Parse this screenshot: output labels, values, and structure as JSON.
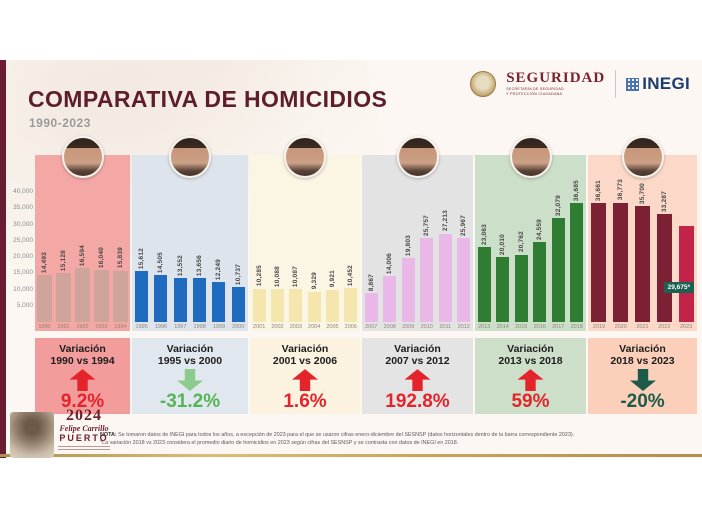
{
  "header": {
    "title": "COMPARATIVA DE HOMICIDIOS",
    "subtitle": "1990-2023",
    "logos": {
      "seguridad": {
        "name": "SEGURIDAD",
        "caption1": "SECRETARÍA DE SEGURIDAD",
        "caption2": "Y PROTECCIÓN CIUDADANA"
      },
      "inegi": {
        "name": "INEGI"
      }
    }
  },
  "chart_data": {
    "type": "bar",
    "title": "COMPARATIVA DE HOMICIDIOS",
    "subtitle": "1990-2023",
    "xlabel": "",
    "ylabel": "",
    "ylim": [
      0,
      40000
    ],
    "grid": false,
    "legend": false,
    "yticks": [
      {
        "value": 40000,
        "label": "40,000"
      },
      {
        "value": 35000,
        "label": "35,000"
      },
      {
        "value": 30000,
        "label": "30,000"
      },
      {
        "value": 25000,
        "label": "25,000"
      },
      {
        "value": 20000,
        "label": "20,000"
      },
      {
        "value": 15000,
        "label": "15,000"
      },
      {
        "value": 10000,
        "label": "10,000"
      },
      {
        "value": 5000,
        "label": "5,000"
      }
    ],
    "periods": [
      {
        "range": "1990-1994",
        "panel_color": "#f4a8a5",
        "bar_color": "#cfa49b",
        "years": [
          "1990",
          "1991",
          "1992",
          "1993",
          "1994"
        ],
        "values": [
          14493,
          15128,
          16594,
          16040,
          15839
        ],
        "labels": [
          "14,493",
          "15,128",
          "16,594",
          "16,040",
          "15,839"
        ],
        "variation": {
          "title": "Variación",
          "range": "1990 vs 1994",
          "pct": "9.2%",
          "direction": "up",
          "box_color": "#f29c9c",
          "arrow_color": "#e3242b",
          "pct_color": "#e3242b"
        }
      },
      {
        "range": "1995-2000",
        "panel_color": "#dde4ec",
        "bar_color": "#1e6bc0",
        "years": [
          "1995",
          "1996",
          "1997",
          "1998",
          "1999",
          "2000"
        ],
        "values": [
          15612,
          14505,
          13552,
          13656,
          12249,
          10737
        ],
        "labels": [
          "15,612",
          "14,505",
          "13,552",
          "13,656",
          "12,249",
          "10,737"
        ],
        "variation": {
          "title": "Variación",
          "range": "1995 vs 2000",
          "pct": "-31.2%",
          "direction": "down",
          "box_color": "#e0e7ee",
          "arrow_color": "#8bcb8b",
          "pct_color": "#56b456"
        }
      },
      {
        "range": "2001-2006",
        "panel_color": "#fbf5e3",
        "bar_color": "#f5e6ae",
        "years": [
          "2001",
          "2002",
          "2003",
          "2004",
          "2005",
          "2006"
        ],
        "values": [
          10285,
          10088,
          10087,
          9329,
          9921,
          10452
        ],
        "labels": [
          "10,285",
          "10,088",
          "10,087",
          "9,329",
          "9,921",
          "10,452"
        ],
        "variation": {
          "title": "Variación",
          "range": "2001 vs 2006",
          "pct": "1.6%",
          "direction": "up",
          "box_color": "#fbf3df",
          "arrow_color": "#e3242b",
          "pct_color": "#e3242b"
        }
      },
      {
        "range": "2007-2012",
        "panel_color": "#e4e3e4",
        "bar_color": "#e9b8e9",
        "years": [
          "2007",
          "2008",
          "2009",
          "2010",
          "2011",
          "2012"
        ],
        "values": [
          8867,
          14006,
          19803,
          25757,
          27213,
          25967
        ],
        "labels": [
          "8,867",
          "14,006",
          "19,803",
          "25,757",
          "27,213",
          "25,967"
        ],
        "variation": {
          "title": "Variación",
          "range": "2007 vs 2012",
          "pct": "192.8%",
          "direction": "up",
          "box_color": "#e4e4e4",
          "arrow_color": "#e3242b",
          "pct_color": "#e3242b"
        }
      },
      {
        "range": "2013-2018",
        "panel_color": "#ccdfc8",
        "bar_color": "#2e7d32",
        "years": [
          "2013",
          "2014",
          "2015",
          "2016",
          "2017",
          "2018"
        ],
        "values": [
          23063,
          20010,
          20762,
          24559,
          32079,
          36685
        ],
        "labels": [
          "23,063",
          "20,010",
          "20,762",
          "24,559",
          "32,079",
          "36,685"
        ],
        "variation": {
          "title": "Variación",
          "range": "2013 vs 2018",
          "pct": "59%",
          "direction": "up",
          "box_color": "#cddfc9",
          "arrow_color": "#e3242b",
          "pct_color": "#e3242b"
        }
      },
      {
        "range": "2019-2023",
        "panel_color": "#fbd8c7",
        "bar_color": "#7c2034",
        "last_bar_color": "#c22349",
        "years": [
          "2019",
          "2020",
          "2021",
          "2022",
          "2023"
        ],
        "values": [
          36661,
          36773,
          35700,
          33287,
          29675
        ],
        "labels": [
          "36,661",
          "36,773",
          "35,700",
          "33,287",
          ""
        ],
        "badge": {
          "text": "29,675*",
          "color": "#1d6152",
          "text_color": "#ffffff"
        },
        "variation": {
          "title": "Variación",
          "range": "2018 vs 2023",
          "pct": "-20%",
          "direction": "down",
          "box_color": "#fbcfb9",
          "arrow_color": "#1c5b49",
          "pct_color": "#1c5b49"
        }
      }
    ]
  },
  "footer": {
    "logo2024": {
      "year": "2024",
      "line1": "Felipe Carrillo",
      "line2": "PUERTO"
    },
    "note_label": "NOTA:",
    "note_line1": "Se tomaron datos de INEGI para todos los años, a excepción de 2023 para el que se usaron cifras enero-diciembre del SESNSP (datos horizontales dentro de la barra correspondiente 2023).",
    "note_line2": "*La variación 2018 vs 2023 considera el promedio diario de homicidios en 2023 según cifras del SESNSP y se contrasta con datos de INEGI en 2018."
  }
}
